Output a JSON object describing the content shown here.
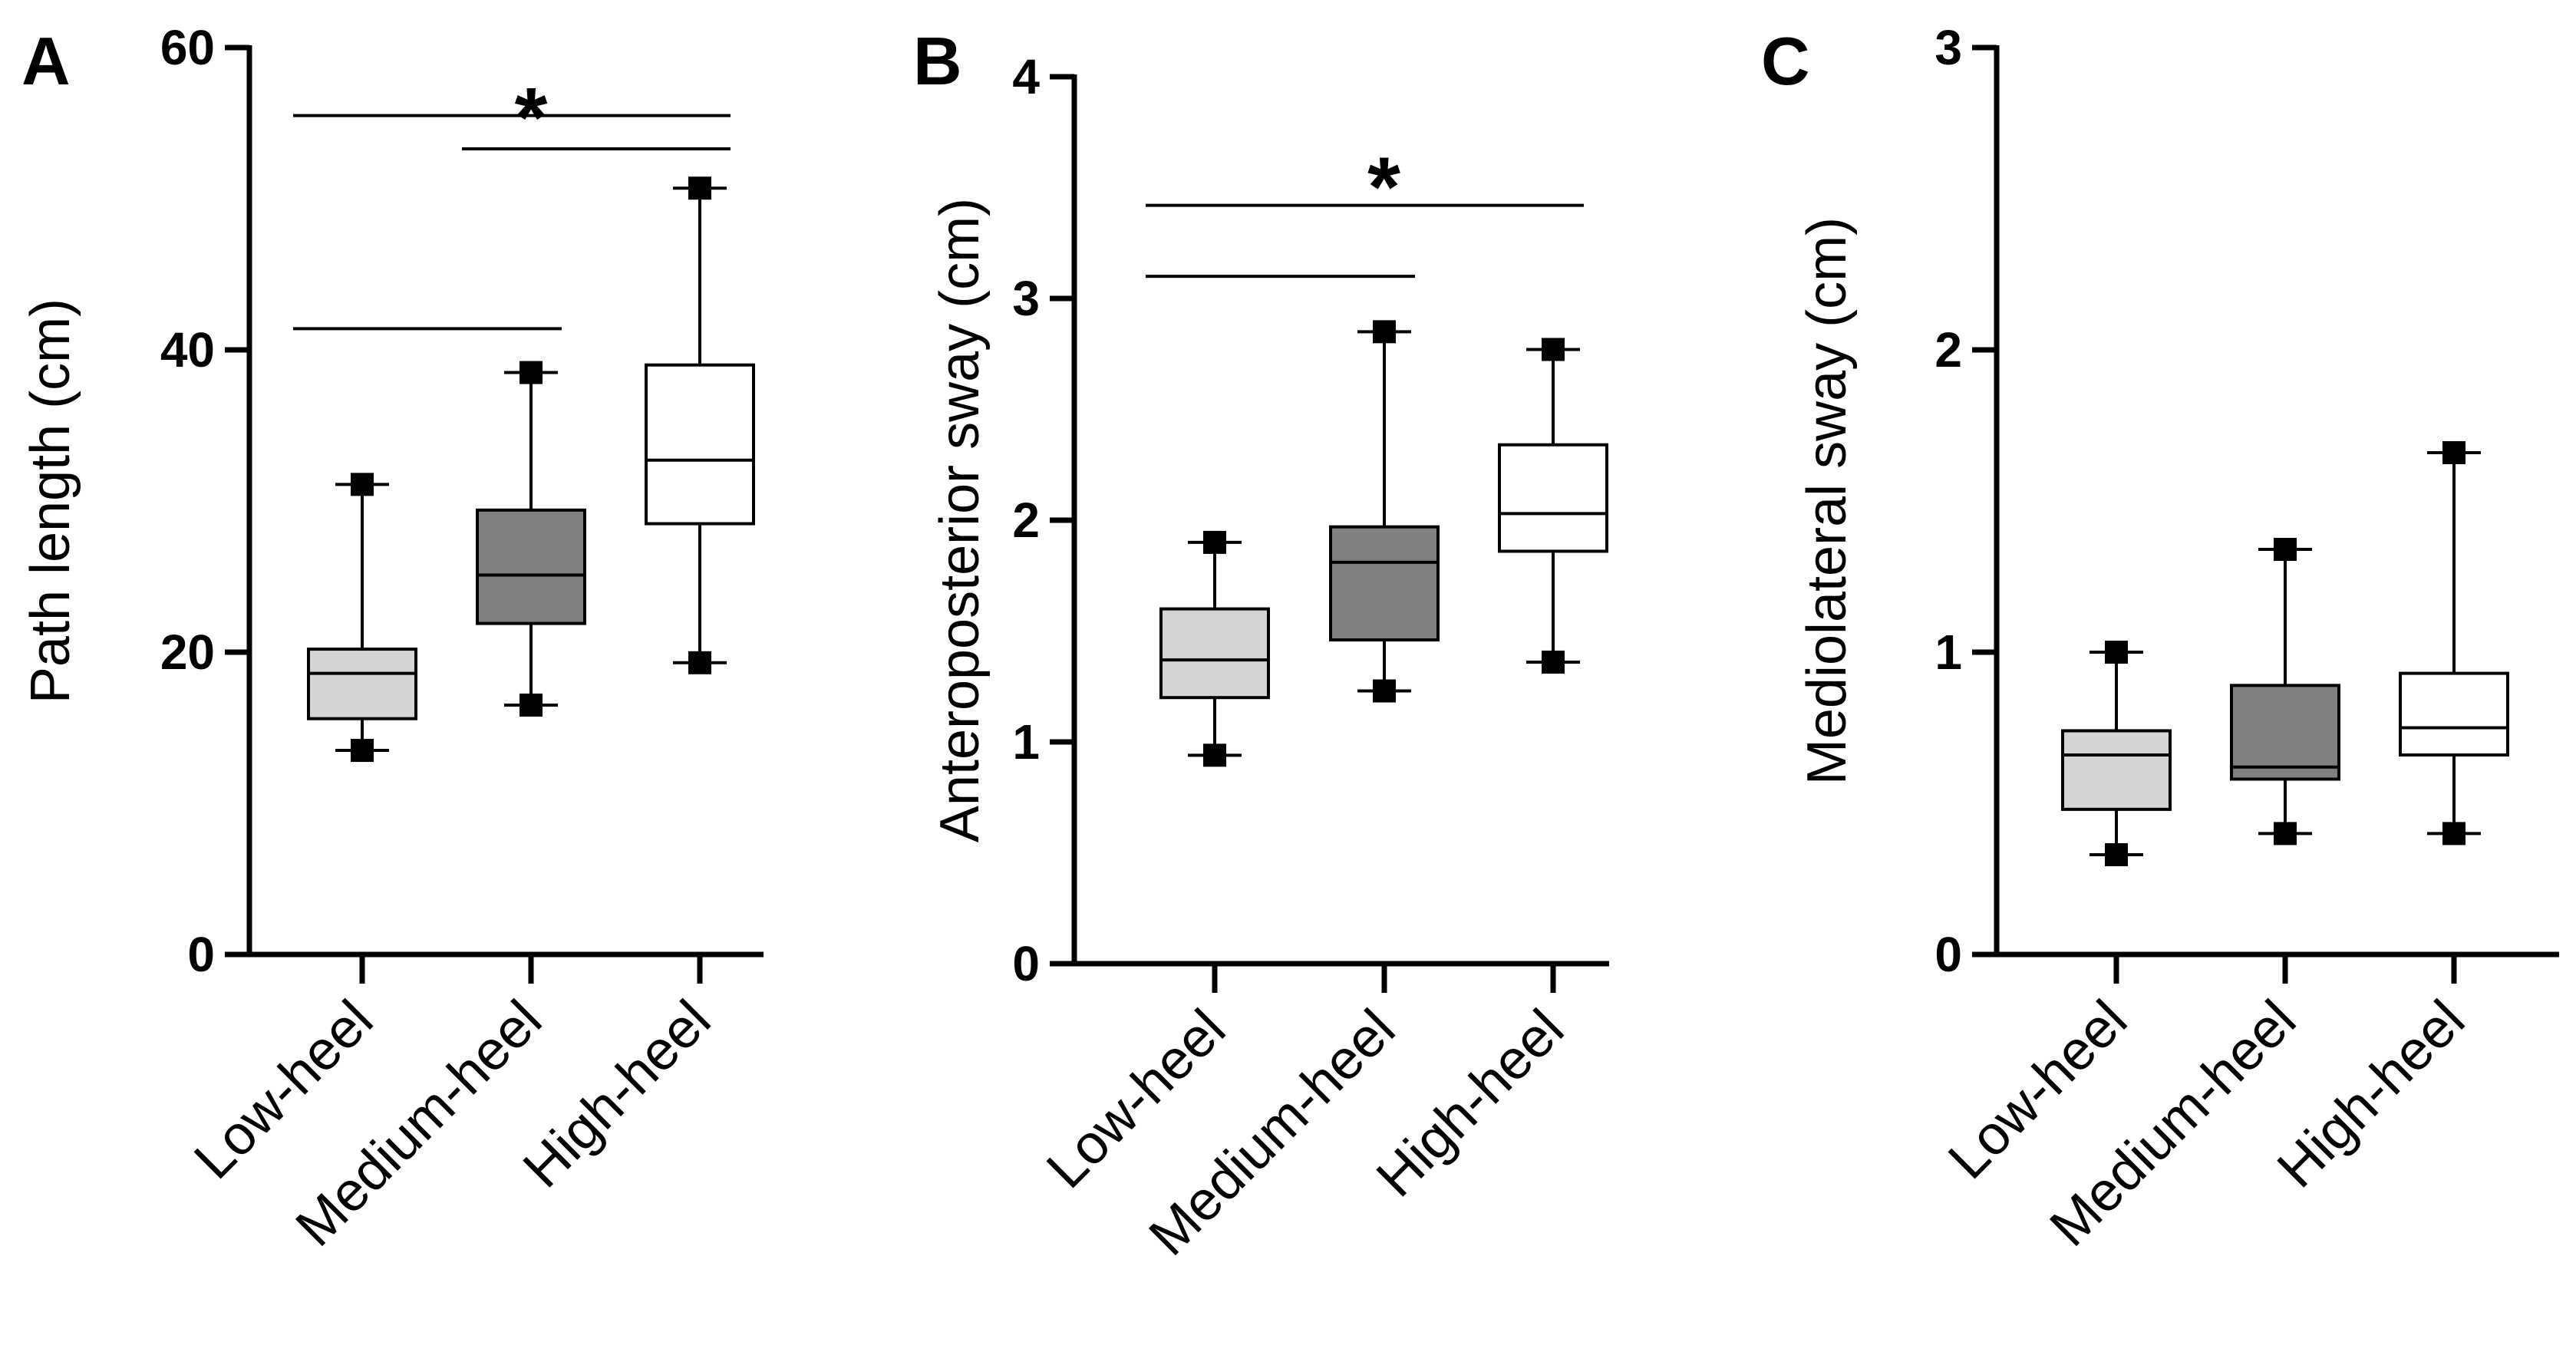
{
  "chart_data": [
    {
      "type": "box",
      "panel": "A",
      "ylabel": "Path length (cm)",
      "ylim": [
        0,
        60
      ],
      "yticks": [
        0,
        20,
        40,
        60
      ],
      "categories": [
        "Low-heel",
        "Medium-heel",
        "High-heel"
      ],
      "boxes": [
        {
          "name": "Low-heel",
          "min": 13.5,
          "q1": 15.6,
          "median": 18.6,
          "q3": 20.2,
          "max": 31.1,
          "fill": "#d4d4d4"
        },
        {
          "name": "Medium-heel",
          "min": 16.5,
          "q1": 21.9,
          "median": 25.1,
          "q3": 29.4,
          "max": 38.5,
          "fill": "#808080"
        },
        {
          "name": "High-heel",
          "min": 19.3,
          "q1": 28.5,
          "median": 32.7,
          "q3": 39.0,
          "max": 50.7,
          "fill": "#ffffff"
        }
      ],
      "significance": [
        {
          "from": 0,
          "to": 2,
          "y": 55.5
        },
        {
          "from": 1,
          "to": 2,
          "y": 53.3
        },
        {
          "from": 0,
          "to": 1,
          "y": 41.4
        }
      ],
      "star": "*",
      "star_y": 56.5
    },
    {
      "type": "box",
      "panel": "B",
      "ylabel": "Anteroposterior sway (cm)",
      "ylim": [
        0,
        4
      ],
      "yticks": [
        0,
        1,
        2,
        3,
        4
      ],
      "categories": [
        "Low-heel",
        "Medium-heel",
        "High-heel"
      ],
      "boxes": [
        {
          "name": "Low-heel",
          "min": 0.94,
          "q1": 1.2,
          "median": 1.37,
          "q3": 1.6,
          "max": 1.9,
          "fill": "#d4d4d4"
        },
        {
          "name": "Medium-heel",
          "min": 1.23,
          "q1": 1.46,
          "median": 1.81,
          "q3": 1.97,
          "max": 2.85,
          "fill": "#808080"
        },
        {
          "name": "High-heel",
          "min": 1.36,
          "q1": 1.86,
          "median": 2.03,
          "q3": 2.34,
          "max": 2.77,
          "fill": "#ffffff"
        }
      ],
      "significance": [
        {
          "from": 0,
          "to": 2,
          "y": 3.42
        },
        {
          "from": 0,
          "to": 1,
          "y": 3.1
        }
      ],
      "star": "*",
      "star_y": 3.58
    },
    {
      "type": "box",
      "panel": "C",
      "ylabel": "Mediolateral sway (cm)",
      "ylim": [
        0,
        3
      ],
      "yticks": [
        0,
        1,
        2,
        3
      ],
      "categories": [
        "Low-heel",
        "Medium-heel",
        "High-heel"
      ],
      "boxes": [
        {
          "name": "Low-heel",
          "min": 0.33,
          "q1": 0.48,
          "median": 0.66,
          "q3": 0.74,
          "max": 1.0,
          "fill": "#d4d4d4"
        },
        {
          "name": "Medium-heel",
          "min": 0.4,
          "q1": 0.58,
          "median": 0.62,
          "q3": 0.89,
          "max": 1.34,
          "fill": "#808080"
        },
        {
          "name": "High-heel",
          "min": 0.4,
          "q1": 0.66,
          "median": 0.75,
          "q3": 0.93,
          "max": 1.66,
          "fill": "#ffffff"
        }
      ],
      "significance": [],
      "star": "",
      "star_y": null
    }
  ]
}
